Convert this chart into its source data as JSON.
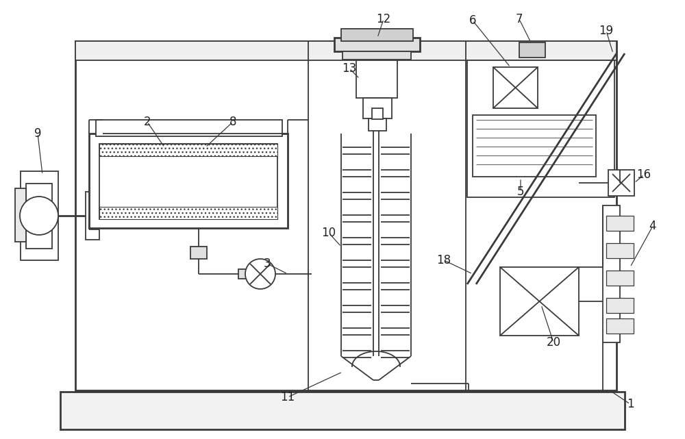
{
  "bg_color": "#ffffff",
  "line_color": "#3a3a3a",
  "lw": 1.3,
  "lw2": 2.0,
  "label_fontsize": 12,
  "label_color": "#222222"
}
